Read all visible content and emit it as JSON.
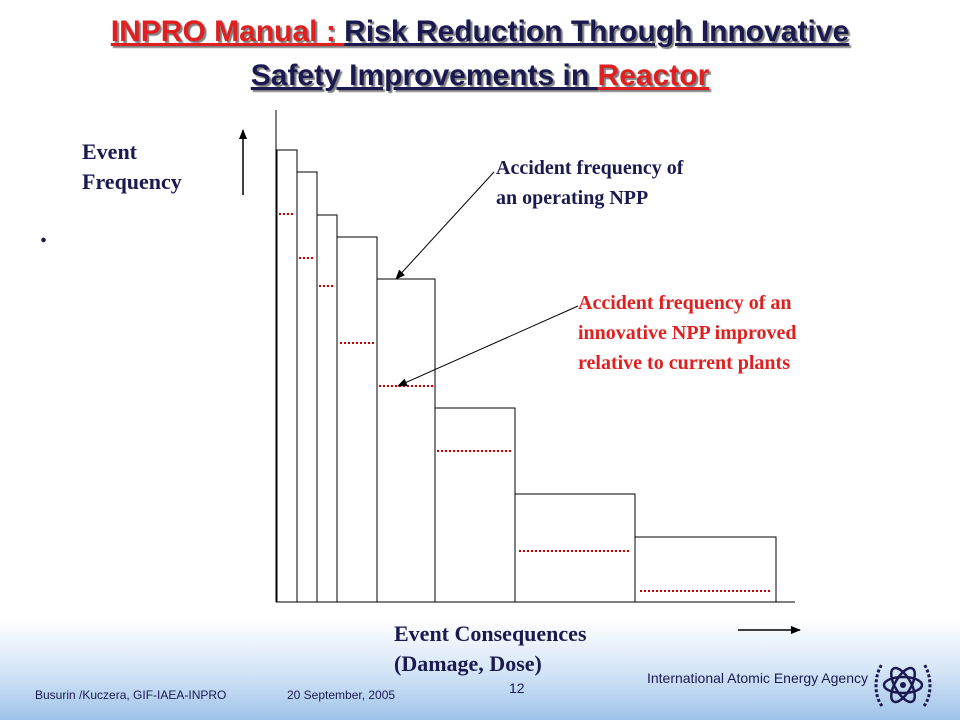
{
  "slide": {
    "title_part1": "INPRO Manual : ",
    "title_part2": "Risk Reduction Through Innovative",
    "title_part3": "Safety Improvements in ",
    "title_part4": "Reactor",
    "bullet": "."
  },
  "diagram": {
    "y_axis_label_line1": "Event",
    "y_axis_label_line2": "Frequency",
    "x_axis_label_line1": "Event Consequences",
    "x_axis_label_line2": "(Damage, Dose)",
    "annotation_operating_line1": "Accident frequency of",
    "annotation_operating_line2": "an operating NPP",
    "annotation_innovative_line1": "Accident frequency of an",
    "annotation_innovative_line2": "innovative NPP improved",
    "annotation_innovative_line3": "relative to current plants",
    "colors": {
      "text": "#1a1a50",
      "innovative": "#e02020",
      "dotted_line": "#cc0000"
    }
  },
  "footer": {
    "authors": "Busurin /Kuczera, GIF-IAEA-INPRO",
    "date": "20 September, 2005",
    "page_number": "12",
    "agency": "International Atomic Energy Agency",
    "logo_icon": "iaea-atom-logo-icon"
  }
}
